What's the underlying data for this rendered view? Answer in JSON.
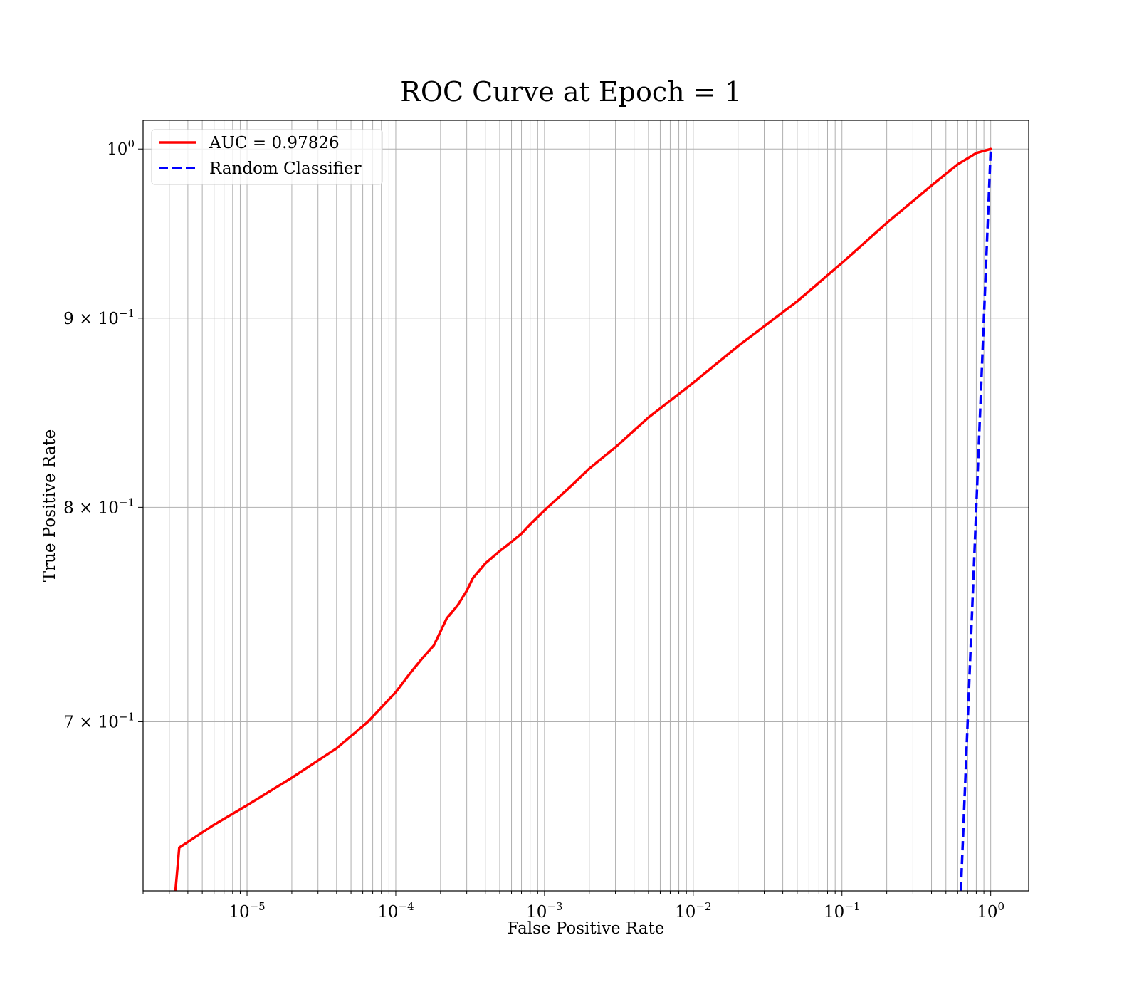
{
  "chart_data": {
    "type": "line",
    "title": "ROC Curve at Epoch = 1",
    "xlabel": "False Positive Rate",
    "ylabel": "True Positive Rate",
    "xscale": "log",
    "yscale": "log",
    "xlim": [
      2e-06,
      1.8
    ],
    "ylim": [
      0.63,
      1.018
    ],
    "grid": true,
    "grid_minor": true,
    "legend_position": "top-left",
    "x_ticks": [
      {
        "value": 1e-05,
        "base": "10",
        "exp": "−5"
      },
      {
        "value": 0.0001,
        "base": "10",
        "exp": "−4"
      },
      {
        "value": 0.001,
        "base": "10",
        "exp": "−3"
      },
      {
        "value": 0.01,
        "base": "10",
        "exp": "−2"
      },
      {
        "value": 0.1,
        "base": "10",
        "exp": "−1"
      },
      {
        "value": 1,
        "base": "10",
        "exp": "0"
      }
    ],
    "y_ticks": [
      {
        "value": 0.7,
        "base": "7 × 10",
        "exp": "−1"
      },
      {
        "value": 0.8,
        "base": "8 × 10",
        "exp": "−1"
      },
      {
        "value": 0.9,
        "base": "9 × 10",
        "exp": "−1"
      },
      {
        "value": 1.0,
        "base": "10",
        "exp": "0"
      }
    ],
    "series": [
      {
        "name": "AUC = 0.97826",
        "color": "#ff0000",
        "style": "solid",
        "x": [
          3.3e-06,
          3.5e-06,
          6e-06,
          1e-05,
          2e-05,
          4e-05,
          6.5e-05,
          0.0001,
          0.000125,
          0.00015,
          0.00018,
          0.0002,
          0.00022,
          0.00026,
          0.0003,
          0.00033,
          0.0004,
          0.0005,
          0.0006,
          0.0007,
          0.0008,
          0.001,
          0.0015,
          0.002,
          0.003,
          0.005,
          0.01,
          0.02,
          0.05,
          0.1,
          0.2,
          0.4,
          0.6,
          0.8,
          1.0
        ],
        "y": [
          0.63,
          0.6472,
          0.6565,
          0.6645,
          0.676,
          0.6885,
          0.7,
          0.713,
          0.7215,
          0.728,
          0.734,
          0.7405,
          0.7465,
          0.7525,
          0.7595,
          0.7655,
          0.7725,
          0.7785,
          0.783,
          0.787,
          0.7915,
          0.7985,
          0.8105,
          0.8195,
          0.8305,
          0.846,
          0.8645,
          0.8845,
          0.9095,
          0.9315,
          0.955,
          0.9775,
          0.9905,
          0.9975,
          1.0
        ]
      },
      {
        "name": "Random Classifier",
        "color": "#0000ff",
        "style": "dashed",
        "x": [
          0.63,
          1.0
        ],
        "y": [
          0.63,
          1.0
        ]
      }
    ]
  }
}
